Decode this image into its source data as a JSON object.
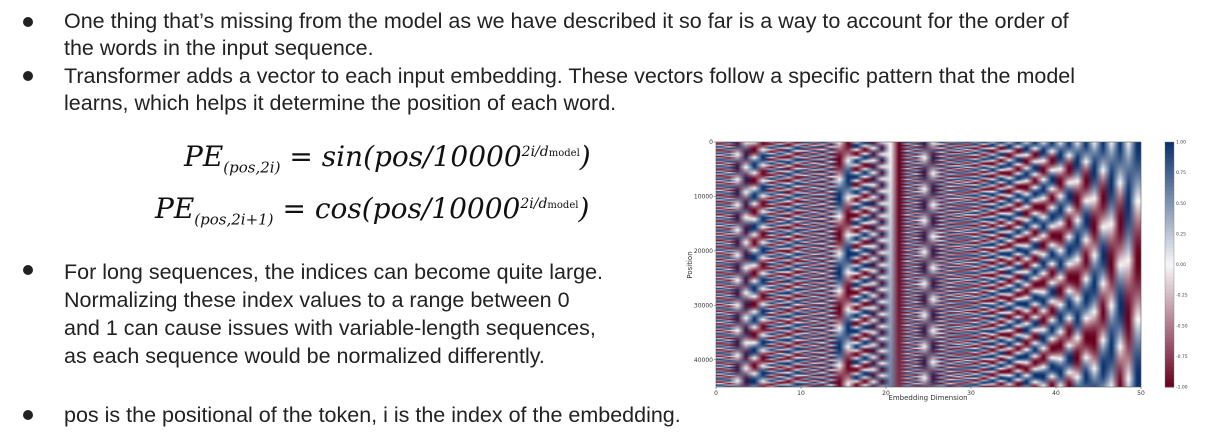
{
  "bullets": {
    "b1_line1": "One thing that’s missing from the model as we have described it so far is a way to account for the order of",
    "b1_line2": "the words in the input sequence.",
    "b2_line1": "Transformer adds a vector to each input embedding. These vectors follow a specific pattern that the model",
    "b2_line2": "learns, which helps it determine the position of each word.",
    "b3_line1": "For long sequences, the indices can become quite large.",
    "b3_line2": "Normalizing these index values to a range between 0",
    "b3_line3": "and 1 can cause issues with variable-length sequences,",
    "b3_line4": "as each sequence would be normalized differently.",
    "b4_line1": "pos is the positional of the token, i is the index of the embedding."
  },
  "formula": {
    "pe": "PE",
    "sub_even": "(pos,2i)",
    "sub_odd": "(pos,2i+1)",
    "eq": "=",
    "func_sin": "sin",
    "func_cos": "cos",
    "open": "(pos/10000",
    "exponent": "2i/d",
    "exp_sub": "model",
    "close": ")"
  },
  "chart_data": {
    "type": "heatmap",
    "xlabel": "Embedding Dimension",
    "ylabel": "Position",
    "xticks": [
      "0",
      "10",
      "20",
      "30",
      "40",
      "50"
    ],
    "yticks": [
      "0",
      "10000",
      "20000",
      "30000",
      "40000"
    ],
    "colorbar_ticks": [
      "1.00",
      "0.75",
      "0.50",
      "0.25",
      "0.00",
      "-0.25",
      "-0.50",
      "-0.75",
      "-1.00"
    ],
    "colormap": "RdBu",
    "colors": {
      "pos": "#08306b",
      "mid": "#f7f7f7",
      "neg": "#67001f"
    },
    "xlim": [
      0,
      50
    ],
    "ylim": [
      0,
      45000
    ],
    "value_range": [
      -1,
      1
    ]
  }
}
